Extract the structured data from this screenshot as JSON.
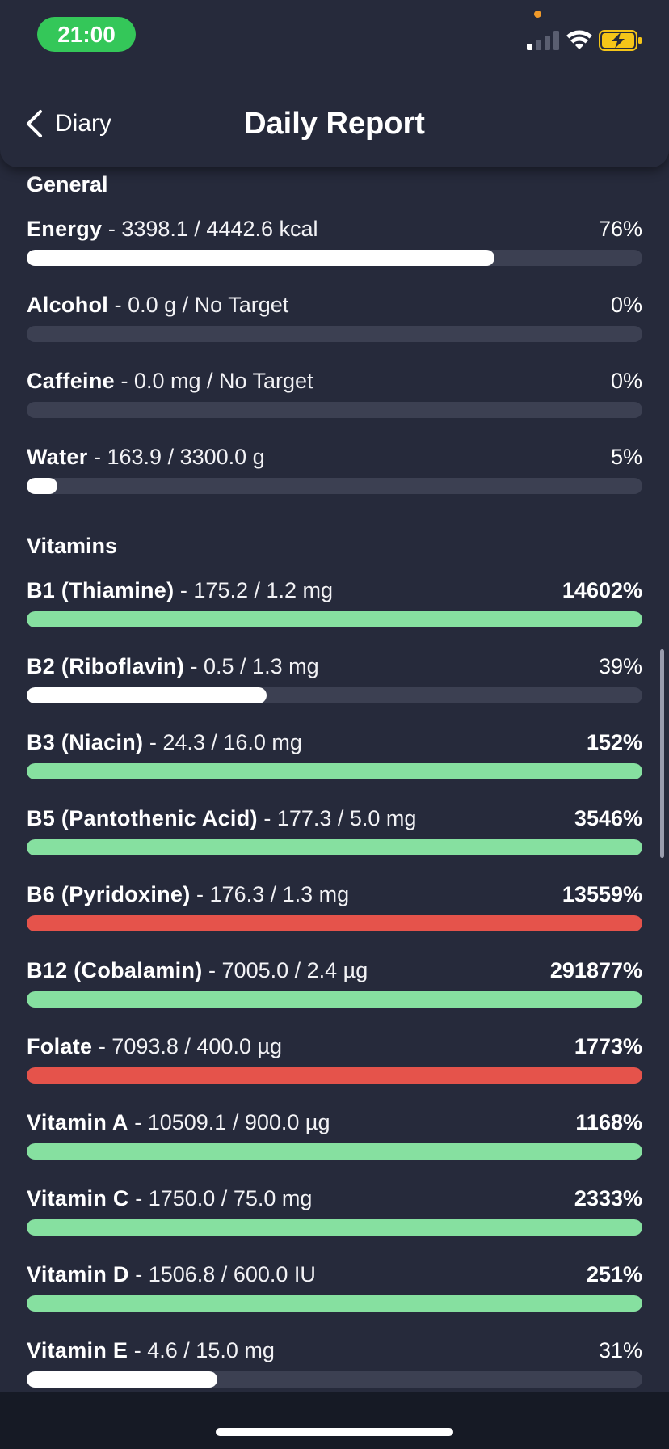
{
  "status_bar": {
    "time": "21:00"
  },
  "nav": {
    "back_label": "Diary",
    "title": "Daily Report"
  },
  "colors": {
    "background": "#262a3b",
    "track": "#3c4052",
    "under": "#ffffff",
    "good": "#86e0a0",
    "over": "#e5534b"
  },
  "sections": [
    {
      "title": "General",
      "items": [
        {
          "name": "Energy",
          "detail": " - 3398.1 / 4442.6 kcal",
          "percent": "76%",
          "fill": 0.76,
          "status": "under",
          "bold_pct": false
        },
        {
          "name": "Alcohol",
          "detail": " - 0.0 g / No Target",
          "percent": "0%",
          "fill": 0,
          "status": "under",
          "bold_pct": false
        },
        {
          "name": "Caffeine",
          "detail": " - 0.0 mg / No Target",
          "percent": "0%",
          "fill": 0,
          "status": "under",
          "bold_pct": false
        },
        {
          "name": "Water",
          "detail": " - 163.9 / 3300.0 g",
          "percent": "5%",
          "fill": 0.05,
          "status": "under",
          "bold_pct": false
        }
      ]
    },
    {
      "title": "Vitamins",
      "items": [
        {
          "name": "B1 (Thiamine)",
          "detail": " - 175.2 / 1.2 mg",
          "percent": "14602%",
          "fill": 1,
          "status": "good",
          "bold_pct": true
        },
        {
          "name": "B2 (Riboflavin)",
          "detail": " - 0.5 / 1.3 mg",
          "percent": "39%",
          "fill": 0.39,
          "status": "under",
          "bold_pct": false
        },
        {
          "name": "B3 (Niacin)",
          "detail": " - 24.3 / 16.0 mg",
          "percent": "152%",
          "fill": 1,
          "status": "good",
          "bold_pct": true
        },
        {
          "name": "B5 (Pantothenic Acid)",
          "detail": " - 177.3 / 5.0 mg",
          "percent": "3546%",
          "fill": 1,
          "status": "good",
          "bold_pct": true
        },
        {
          "name": "B6 (Pyridoxine)",
          "detail": " - 176.3 / 1.3 mg",
          "percent": "13559%",
          "fill": 1,
          "status": "over",
          "bold_pct": true
        },
        {
          "name": "B12 (Cobalamin)",
          "detail": " - 7005.0 / 2.4 µg",
          "percent": "291877%",
          "fill": 1,
          "status": "good",
          "bold_pct": true
        },
        {
          "name": "Folate",
          "detail": " - 7093.8 / 400.0 µg",
          "percent": "1773%",
          "fill": 1,
          "status": "over",
          "bold_pct": true
        },
        {
          "name": "Vitamin A",
          "detail": " - 10509.1 / 900.0 µg",
          "percent": "1168%",
          "fill": 1,
          "status": "good",
          "bold_pct": true
        },
        {
          "name": "Vitamin C",
          "detail": " - 1750.0 / 75.0 mg",
          "percent": "2333%",
          "fill": 1,
          "status": "good",
          "bold_pct": true
        },
        {
          "name": "Vitamin D",
          "detail": " - 1506.8 / 600.0 IU",
          "percent": "251%",
          "fill": 1,
          "status": "good",
          "bold_pct": true
        },
        {
          "name": "Vitamin E",
          "detail": " - 4.6 / 15.0 mg",
          "percent": "31%",
          "fill": 0.31,
          "status": "under",
          "bold_pct": false
        }
      ]
    }
  ]
}
